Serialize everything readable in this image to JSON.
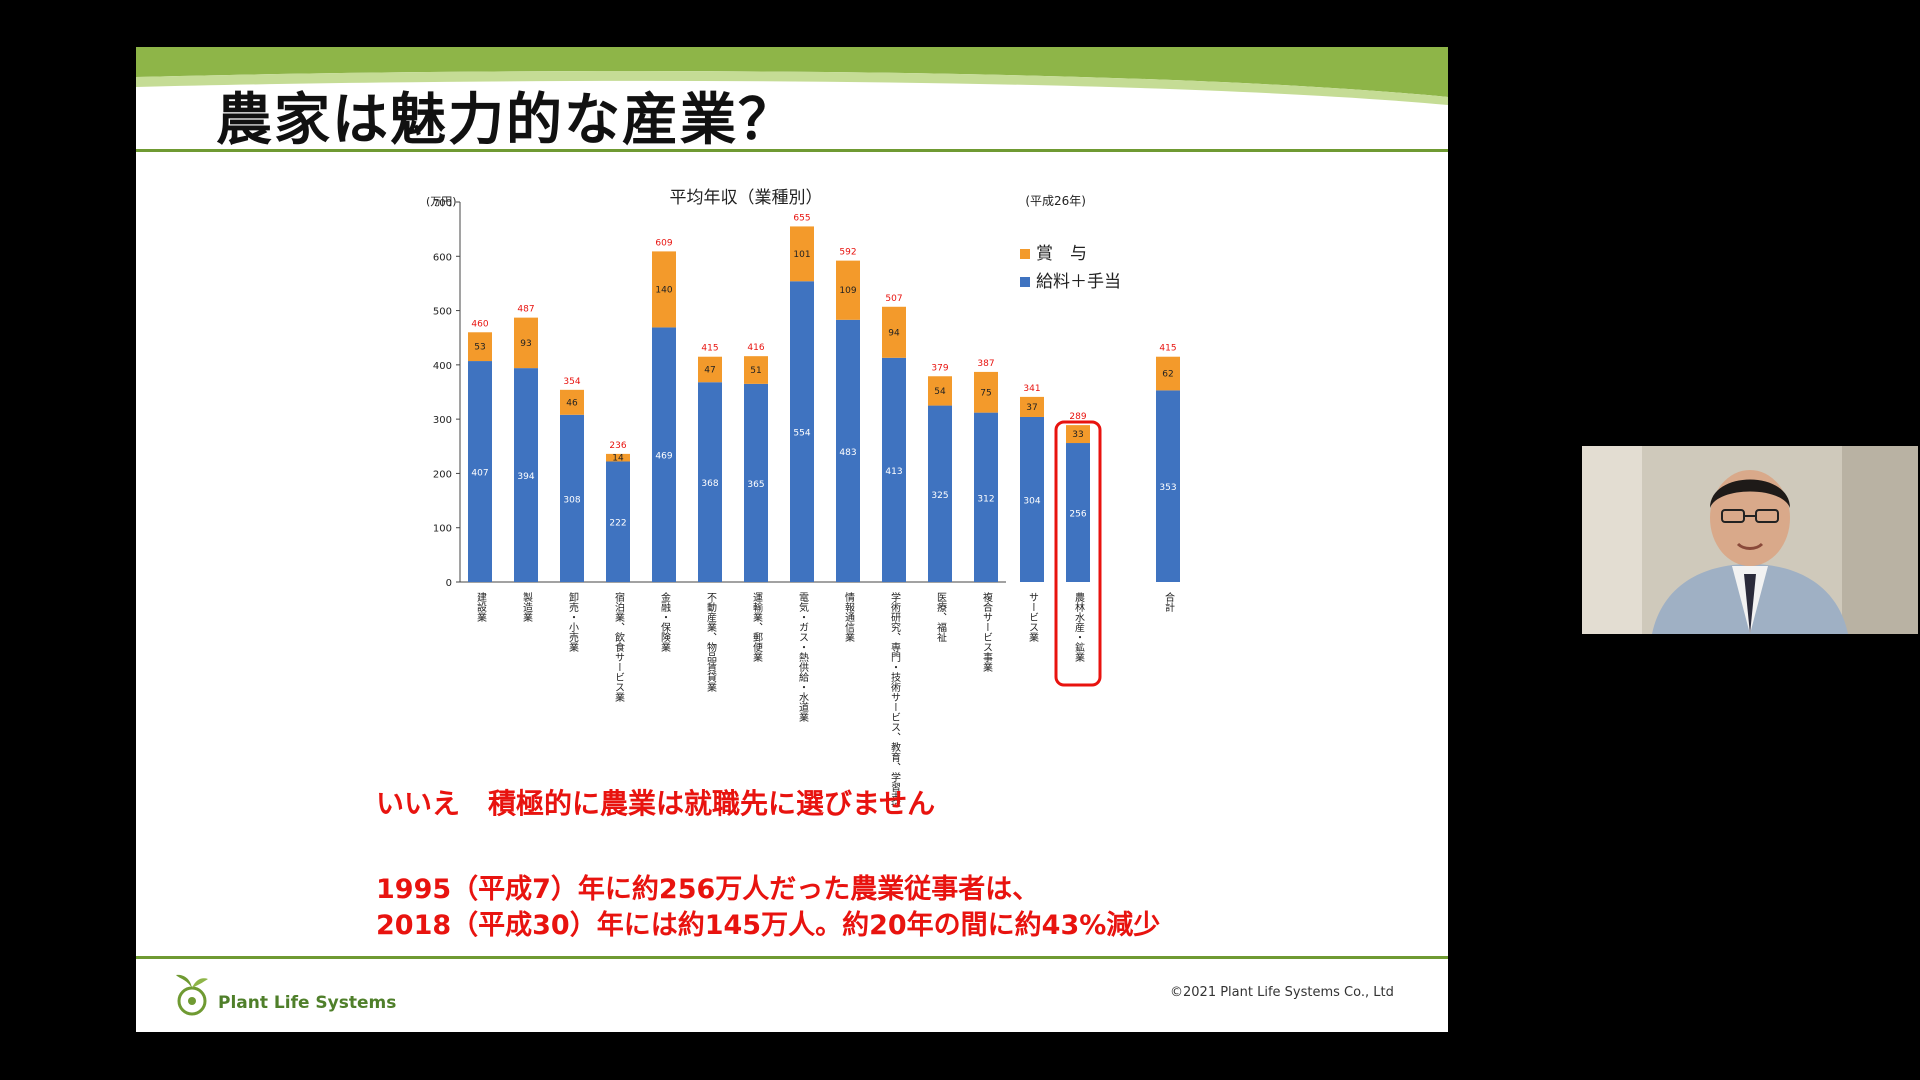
{
  "slide": {
    "title": "農家は魅力的な産業？",
    "messages": {
      "answer": "いいえ　積極的に農業は就職先に選びません",
      "line1": "1995（平成7）年に約256万人だった農業従事者は、",
      "line2": "2018（平成30）年には約145万人。約20年の間に約43%減少"
    },
    "footer": {
      "logo_text": "Plant Life Systems",
      "copyright": "©2021 Plant Life Systems Co., Ltd"
    }
  },
  "colors": {
    "bonus": "#f39a2b",
    "salary": "#3f73c0",
    "total_label": "#e8130f",
    "highlight": "#e8130f",
    "accent_green": "#6f9a32"
  },
  "chart_data": {
    "type": "bar",
    "stacked": true,
    "title": "平均年収（業種別）",
    "unit_label": "(万円)",
    "year_label": "(平成26年)",
    "ylim": [
      0,
      700
    ],
    "yticks": [
      0,
      100,
      200,
      300,
      400,
      500,
      600,
      700
    ],
    "legend_position": "top-right",
    "categories": [
      "建設業",
      "製造業",
      "卸売・小売業",
      "宿泊業、飲食サービス業",
      "金融・保険業",
      "不動産業、物品賃貸業",
      "運輸業、郵便業",
      "電気・ガス・熱供給・水道業",
      "情報通信業",
      "学術研究、専門・技術サービス、教育、学習支援業",
      "医療、福祉",
      "複合サービス事業",
      "サービス業",
      "農林水産・鉱業",
      "合計"
    ],
    "series": [
      {
        "name": "給料＋手当",
        "values": [
          407,
          394,
          308,
          222,
          469,
          368,
          365,
          554,
          483,
          413,
          325,
          312,
          304,
          256,
          353
        ]
      },
      {
        "name": "賞　与",
        "values": [
          53,
          93,
          46,
          14,
          140,
          47,
          51,
          101,
          109,
          94,
          54,
          75,
          37,
          33,
          62
        ]
      }
    ],
    "totals": [
      460,
      487,
      354,
      236,
      609,
      415,
      416,
      655,
      592,
      507,
      379,
      387,
      341,
      289,
      415
    ],
    "highlight_category": "農林水産・鉱業"
  }
}
